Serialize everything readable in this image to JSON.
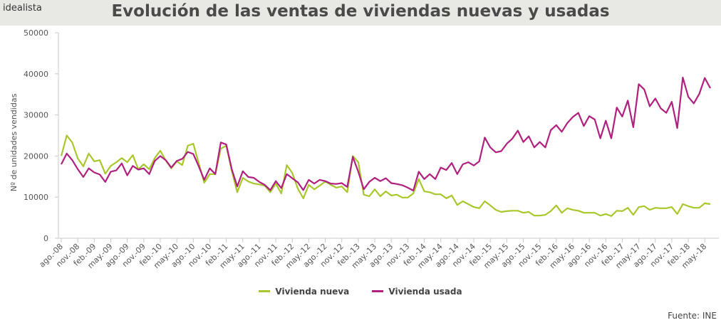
{
  "header": {
    "brand": "idealista",
    "title": "Evolución de las ventas de viviendas nuevas y usadas"
  },
  "footer": {
    "source": "Fuente: INE"
  },
  "colors": {
    "nueva": "#a8c72a",
    "usada": "#b0207f",
    "axis": "#c8c8c4"
  },
  "chart_data": {
    "type": "line",
    "title": "Evolución de las ventas de viviendas nuevas y usadas",
    "xlabel": "",
    "ylabel": "Nº de unidades vendidas",
    "ylim": [
      0,
      50000
    ],
    "yticks": [
      0,
      10000,
      20000,
      30000,
      40000,
      50000
    ],
    "grid": false,
    "legend_position": "bottom-center",
    "x_start": "ago.-08",
    "x_ticks": [
      "ago.-08",
      "nov.-08",
      "feb.-09",
      "may.-09",
      "ago.-09",
      "nov.-09",
      "feb.-10",
      "may.-10",
      "ago.-10",
      "nov.-10",
      "feb.-11",
      "may.-11",
      "ago.-11",
      "nov.-11",
      "feb.-12",
      "may.-12",
      "ago.-12",
      "nov.-12",
      "feb.-13",
      "may.-13",
      "ago.-13",
      "nov.-13",
      "feb.-14",
      "may.-14",
      "ago.-14",
      "nov.-14",
      "feb.-15",
      "may.-15",
      "ago.-15",
      "nov.-15",
      "feb.-16",
      "may.-16",
      "ago.-16",
      "nov.-16",
      "feb.-17",
      "may.-17",
      "ago.-17",
      "nov.-17",
      "feb.-18",
      "may.-18"
    ],
    "series": [
      {
        "name": "Vivienda nueva",
        "color": "#a8c72a",
        "values": [
          20000,
          25000,
          23300,
          19400,
          17500,
          20600,
          18700,
          19000,
          15700,
          17600,
          18500,
          19500,
          18500,
          20200,
          16800,
          18000,
          16800,
          19500,
          21300,
          18900,
          17000,
          18700,
          17800,
          22500,
          23000,
          18200,
          13500,
          15600,
          15600,
          21800,
          22500,
          16400,
          11200,
          14700,
          13800,
          13300,
          13100,
          12800,
          11200,
          13300,
          10900,
          17800,
          15900,
          12100,
          9700,
          13000,
          11900,
          12800,
          13800,
          13000,
          12300,
          12600,
          11200,
          20000,
          18500,
          10600,
          10200,
          11900,
          10200,
          11400,
          10400,
          10600,
          9900,
          9900,
          10900,
          14400,
          11400,
          11200,
          10700,
          10700,
          9700,
          10400,
          8100,
          9000,
          8300,
          7600,
          7300,
          9000,
          8000,
          6900,
          6400,
          6600,
          6700,
          6700,
          6200,
          6400,
          5500,
          5500,
          5700,
          6600,
          8000,
          6200,
          7300,
          6900,
          6700,
          6200,
          6200,
          6200,
          5500,
          5900,
          5400,
          6700,
          6600,
          7400,
          5700,
          7600,
          7800,
          6900,
          7400,
          7300,
          7300,
          7600,
          5900,
          8300,
          7800,
          7400,
          7400,
          8500,
          8300
        ]
      },
      {
        "name": "Vivienda usada",
        "color": "#b0207f",
        "values": [
          18000,
          20600,
          19000,
          16800,
          14900,
          17000,
          16000,
          15500,
          13700,
          16200,
          16500,
          18200,
          15300,
          17600,
          16700,
          17000,
          15600,
          18800,
          20000,
          19000,
          17200,
          18800,
          19300,
          21000,
          20500,
          17500,
          14200,
          17000,
          15600,
          23300,
          22800,
          16800,
          12600,
          16300,
          14900,
          14700,
          13700,
          13000,
          11700,
          13900,
          12200,
          15600,
          14600,
          13600,
          11700,
          14200,
          13300,
          14200,
          13900,
          13300,
          13200,
          13400,
          12500,
          19800,
          16200,
          11900,
          13700,
          14700,
          13900,
          14600,
          13400,
          13200,
          12900,
          12300,
          11600,
          16200,
          14400,
          15600,
          14400,
          17200,
          16600,
          18300,
          15600,
          18000,
          18500,
          17700,
          18700,
          24500,
          22100,
          20900,
          21200,
          23000,
          24200,
          26200,
          23400,
          24800,
          22100,
          23400,
          22100,
          26300,
          27500,
          25900,
          28000,
          29500,
          30500,
          27300,
          29700,
          28900,
          24300,
          28600,
          24300,
          31800,
          29600,
          33500,
          27000,
          37500,
          36200,
          32100,
          34000,
          31600,
          30500,
          33200,
          26800,
          39100,
          34400,
          32800,
          35100,
          39000,
          36500
        ]
      }
    ]
  }
}
